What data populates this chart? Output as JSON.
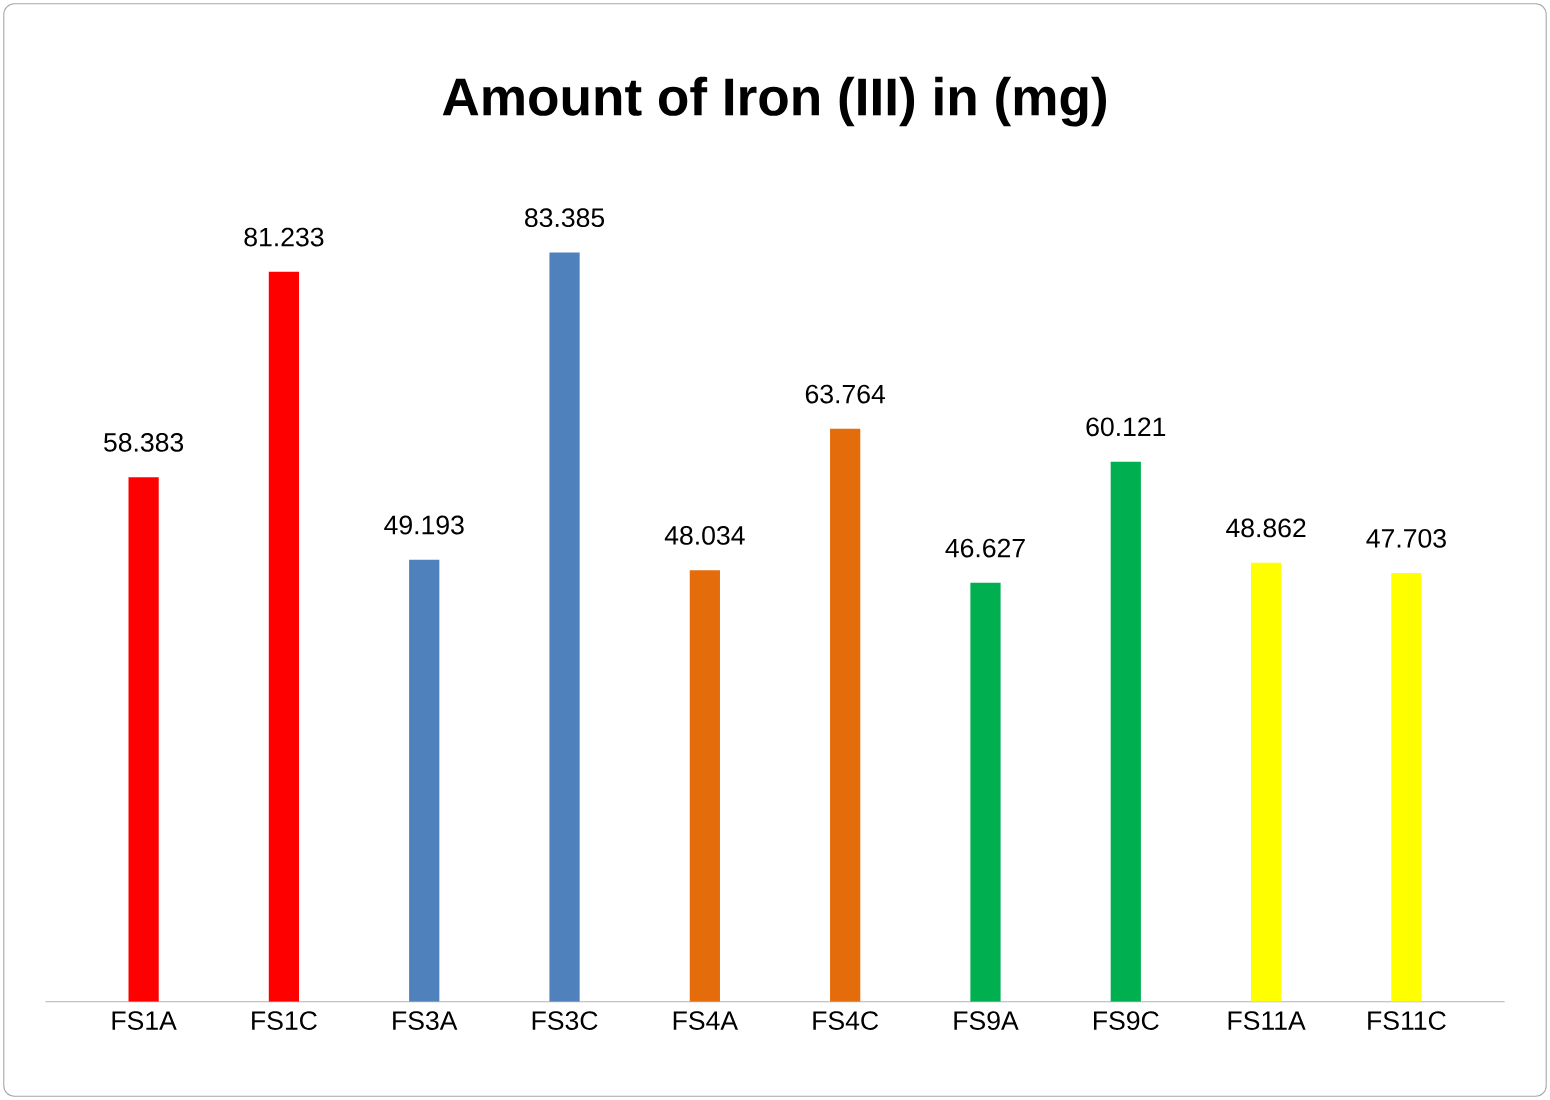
{
  "chart_data": {
    "type": "bar",
    "title": "Amount of Iron (III) in (mg)",
    "categories": [
      "FS1A",
      "FS1C",
      "FS3A",
      "FS3C",
      "FS4A",
      "FS4C",
      "FS9A",
      "FS9C",
      "FS11A",
      "FS11C"
    ],
    "values": [
      58.383,
      81.233,
      49.193,
      83.385,
      48.034,
      63.764,
      46.627,
      60.121,
      48.862,
      47.703
    ],
    "colors": [
      "#ff0000",
      "#ff0000",
      "#4f81bd",
      "#4f81bd",
      "#e46c0a",
      "#e46c0a",
      "#00b050",
      "#00b050",
      "#ffff00",
      "#ffff00"
    ],
    "data_labels": true
  }
}
